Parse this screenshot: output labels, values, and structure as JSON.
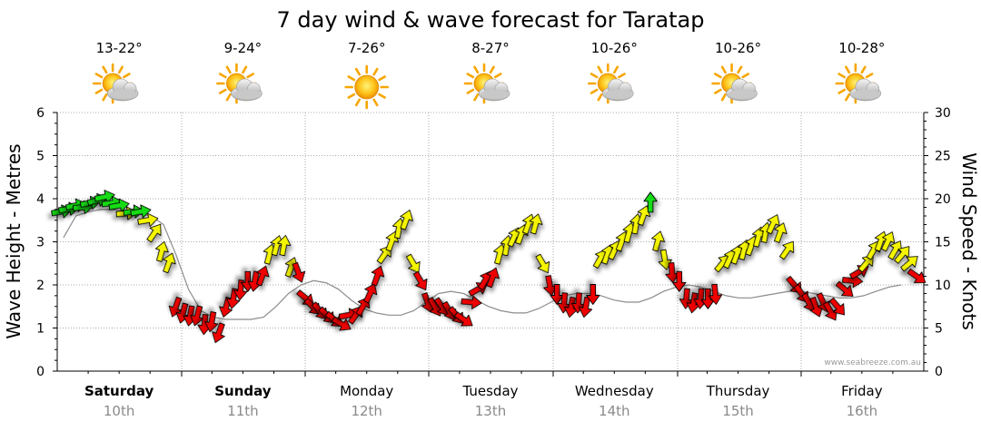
{
  "chart_data": {
    "type": "arrow-series",
    "title": "7 day wind & wave forecast for Taratap",
    "ylabel_left": "Wave Height - Metres",
    "ylabel_right": "Wind Speed - Knots",
    "ylim_left": [
      0,
      6
    ],
    "ylim_right": [
      0,
      30
    ],
    "yticks_left": [
      "0",
      "1",
      "2",
      "3",
      "4",
      "5",
      "6"
    ],
    "yticks_right": [
      "0",
      "5",
      "10",
      "15",
      "20",
      "25",
      "30"
    ],
    "watermark": "www.seabreeze.com.au",
    "days": [
      {
        "name": "Saturday",
        "date": "10th",
        "temp": "13-22°",
        "weather": "partly-cloudy",
        "bold": true
      },
      {
        "name": "Sunday",
        "date": "11th",
        "temp": "9-24°",
        "weather": "partly-cloudy",
        "bold": true
      },
      {
        "name": "Monday",
        "date": "12th",
        "temp": "7-26°",
        "weather": "sunny",
        "bold": false
      },
      {
        "name": "Tuesday",
        "date": "13th",
        "temp": "8-27°",
        "weather": "partly-cloudy",
        "bold": false
      },
      {
        "name": "Wednesday",
        "date": "14th",
        "temp": "10-26°",
        "weather": "partly-cloudy",
        "bold": false
      },
      {
        "name": "Thursday",
        "date": "15th",
        "temp": "10-26°",
        "weather": "partly-cloudy",
        "bold": false
      },
      {
        "name": "Friday",
        "date": "16th",
        "temp": "10-28°",
        "weather": "partly-cloudy",
        "bold": false
      }
    ],
    "wave_heights": [
      3.1,
      3.6,
      3.7,
      3.75,
      3.75,
      3.7,
      3.65,
      3.6,
      3.4,
      2.7,
      1.9,
      1.4,
      1.25,
      1.2,
      1.2,
      1.2,
      1.25,
      1.5,
      1.8,
      2.0,
      2.1,
      2.05,
      1.9,
      1.65,
      1.45,
      1.35,
      1.3,
      1.3,
      1.4,
      1.6,
      1.8,
      1.85,
      1.8,
      1.65,
      1.5,
      1.4,
      1.35,
      1.35,
      1.45,
      1.6,
      1.75,
      1.8,
      1.8,
      1.75,
      1.65,
      1.6,
      1.6,
      1.7,
      1.85,
      1.95,
      2.0,
      1.95,
      1.85,
      1.75,
      1.7,
      1.7,
      1.75,
      1.8,
      1.85,
      1.85,
      1.8,
      1.75,
      1.7,
      1.7,
      1.75,
      1.85,
      1.95,
      2.0
    ],
    "wind_speeds": [
      18.5,
      18.8,
      19.2,
      19.0,
      19.5,
      19.8,
      20.2,
      19.5,
      19.2,
      18.3,
      18.5,
      18.5,
      17.5,
      16.0,
      13.8,
      12.5,
      7.5,
      6.8,
      6.5,
      6.5,
      5.5,
      5.8,
      4.5,
      7.5,
      8.5,
      9.5,
      10.5,
      10.5,
      11.0,
      13.5,
      14.5,
      14.5,
      12.0,
      11.5,
      8.5,
      7.5,
      7.0,
      6.5,
      6.0,
      5.5,
      6.5,
      6.5,
      7.5,
      9.0,
      11.0,
      13.5,
      15.0,
      16.5,
      17.5,
      12.5,
      10.5,
      8.0,
      7.5,
      7.5,
      7.0,
      6.5,
      6.0,
      8.0,
      9.5,
      10.5,
      10.8,
      13.5,
      14.5,
      15.5,
      15.8,
      17.0,
      17.0,
      12.5,
      10.0,
      9.0,
      8.0,
      7.5,
      8.0,
      7.5,
      9.0,
      13.0,
      13.5,
      14.0,
      15.0,
      16.0,
      17.0,
      18.0,
      19.5,
      15.0,
      13.0,
      11.5,
      10.5,
      8.5,
      8.0,
      8.5,
      8.5,
      9.0,
      12.5,
      13.0,
      13.5,
      14.0,
      14.5,
      15.5,
      16.0,
      17.0,
      16.0,
      14.0,
      10.0,
      9.0,
      8.0,
      7.5,
      8.0,
      7.0,
      7.5,
      9.5,
      10.5,
      11.5,
      12.5,
      14.0,
      15.0,
      15.0,
      14.0,
      13.5,
      12.5,
      11.0
    ],
    "wind_directions_deg": [
      80,
      82,
      78,
      85,
      80,
      75,
      78,
      82,
      80,
      85,
      83,
      80,
      80,
      35,
      15,
      20,
      200,
      195,
      190,
      195,
      185,
      190,
      200,
      195,
      190,
      185,
      180,
      190,
      20,
      15,
      15,
      10,
      20,
      160,
      130,
      135,
      140,
      135,
      130,
      120,
      80,
      35,
      30,
      25,
      20,
      35,
      20,
      10,
      20,
      150,
      150,
      160,
      150,
      145,
      150,
      140,
      125,
      95,
      60,
      30,
      20,
      15,
      10,
      25,
      20,
      20,
      15,
      150,
      170,
      180,
      185,
      190,
      185,
      190,
      180,
      30,
      20,
      25,
      20,
      15,
      10,
      20,
      0,
      15,
      170,
      175,
      180,
      185,
      190,
      185,
      180,
      175,
      40,
      25,
      20,
      15,
      20,
      15,
      10,
      25,
      20,
      35,
      140,
      145,
      150,
      160,
      155,
      150,
      140,
      130,
      95,
      60,
      40,
      30,
      20,
      25,
      30,
      40,
      50,
      125
    ],
    "legend": {
      "colors": {
        "green": "#14dc14",
        "yellow": "#f5f500",
        "red": "#ee0000"
      }
    }
  }
}
